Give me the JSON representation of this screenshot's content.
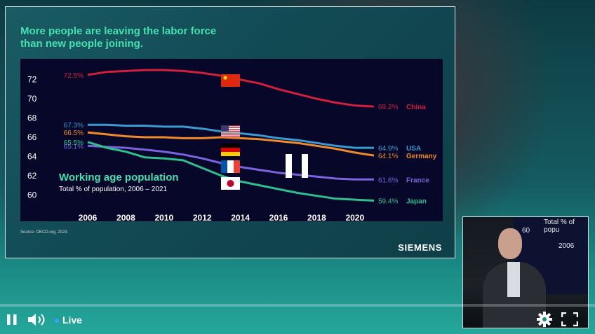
{
  "slide": {
    "headline_line1": "More people are leaving the labor force",
    "headline_line2": "than new people joining.",
    "source": "Source: OECD.org, 2023",
    "brand": "SIEMENS"
  },
  "chart_data": {
    "type": "line",
    "title": "Working age population",
    "subtitle": "Total % of population, 2006 – 2021",
    "x_ticks": [
      2006,
      2008,
      2010,
      2012,
      2014,
      2016,
      2018,
      2020
    ],
    "y_ticks": [
      60,
      62,
      64,
      66,
      68,
      70,
      72
    ],
    "ylim": [
      59,
      73
    ],
    "xlim": [
      2006,
      2021
    ],
    "grid": false,
    "series": [
      {
        "name": "China",
        "color": "#d21f3c",
        "start_label": "72.5%",
        "end_label": "69.2%",
        "x": [
          2006,
          2007,
          2008,
          2009,
          2010,
          2011,
          2012,
          2013,
          2014,
          2015,
          2016,
          2017,
          2018,
          2019,
          2020,
          2021
        ],
        "values": [
          72.5,
          72.8,
          72.9,
          73.0,
          73.0,
          72.9,
          72.7,
          72.4,
          72.0,
          71.6,
          71.0,
          70.5,
          70.0,
          69.6,
          69.3,
          69.2
        ]
      },
      {
        "name": "USA",
        "color": "#3a9bcf",
        "start_label": "67.3%",
        "end_label": "64.9%",
        "x": [
          2006,
          2007,
          2008,
          2009,
          2010,
          2011,
          2012,
          2013,
          2014,
          2015,
          2016,
          2017,
          2018,
          2019,
          2020,
          2021
        ],
        "values": [
          67.3,
          67.3,
          67.2,
          67.2,
          67.1,
          67.1,
          66.9,
          66.6,
          66.4,
          66.2,
          65.9,
          65.7,
          65.4,
          65.1,
          64.9,
          64.9
        ]
      },
      {
        "name": "Germany",
        "color": "#f08a2c",
        "start_label": "66.5%",
        "end_label": "64.1%",
        "x": [
          2006,
          2007,
          2008,
          2009,
          2010,
          2011,
          2012,
          2013,
          2014,
          2015,
          2016,
          2017,
          2018,
          2019,
          2020,
          2021
        ],
        "values": [
          66.5,
          66.3,
          66.1,
          66.0,
          66.0,
          65.9,
          65.9,
          66.0,
          65.9,
          65.8,
          65.6,
          65.4,
          65.1,
          64.8,
          64.4,
          64.1
        ]
      },
      {
        "name": "France",
        "color": "#7b63e0",
        "start_label": "65.1%",
        "end_label": "61.6%",
        "x": [
          2006,
          2007,
          2008,
          2009,
          2010,
          2011,
          2012,
          2013,
          2014,
          2015,
          2016,
          2017,
          2018,
          2019,
          2020,
          2021
        ],
        "values": [
          65.1,
          65.0,
          64.9,
          64.7,
          64.5,
          64.2,
          63.8,
          63.3,
          62.9,
          62.6,
          62.3,
          62.1,
          61.9,
          61.7,
          61.6,
          61.6
        ]
      },
      {
        "name": "Japan",
        "color": "#2fbf8f",
        "start_label": "65.5%",
        "end_label": "59.4%",
        "x": [
          2006,
          2007,
          2008,
          2009,
          2010,
          2011,
          2012,
          2013,
          2014,
          2015,
          2016,
          2017,
          2018,
          2019,
          2020,
          2021
        ],
        "values": [
          65.5,
          64.9,
          64.5,
          63.9,
          63.8,
          63.6,
          62.8,
          62.0,
          61.4,
          61.0,
          60.6,
          60.2,
          59.9,
          59.6,
          59.5,
          59.4
        ]
      }
    ],
    "legend_placement": "right, at line ends"
  },
  "pip": {
    "text_top": "Total % of popu",
    "text_tick": "60",
    "text_year": "2006"
  },
  "player": {
    "live_label": "Live",
    "pause_icon": "pause-icon",
    "volume_icon": "volume-icon",
    "settings_icon": "gear-icon",
    "fullscreen_icon": "fullscreen-icon"
  }
}
